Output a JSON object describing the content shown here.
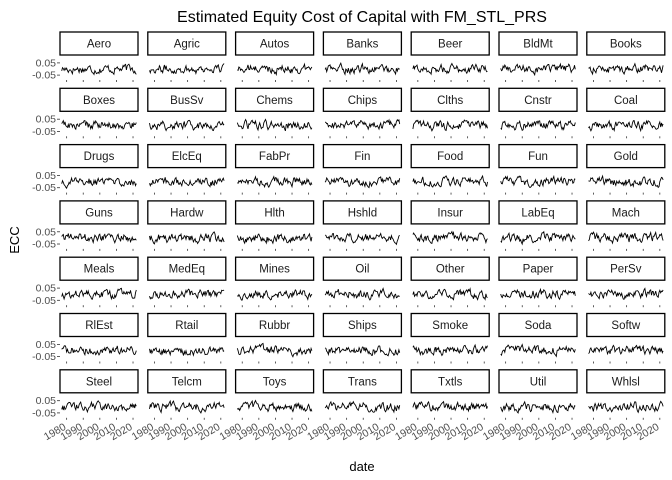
{
  "chart_data": {
    "type": "line",
    "title": "Estimated Equity Cost of Capital with FM_STL_PRS",
    "xlabel": "date",
    "ylabel": "ECC",
    "x_ticks": [
      "1980",
      "1990",
      "2000",
      "2010",
      "2020"
    ],
    "y_ticks": [
      "0.05",
      "-0.05"
    ],
    "xlim": [
      1976,
      2023
    ],
    "ylim": [
      -0.09,
      0.09
    ],
    "grid": false,
    "layout": "facet-grid 7x7",
    "series": [
      {
        "name": "Aero"
      },
      {
        "name": "Agric"
      },
      {
        "name": "Autos"
      },
      {
        "name": "Banks"
      },
      {
        "name": "Beer"
      },
      {
        "name": "BldMt"
      },
      {
        "name": "Books"
      },
      {
        "name": "Boxes"
      },
      {
        "name": "BusSv"
      },
      {
        "name": "Chems"
      },
      {
        "name": "Chips"
      },
      {
        "name": "Clths"
      },
      {
        "name": "Cnstr"
      },
      {
        "name": "Coal"
      },
      {
        "name": "Drugs"
      },
      {
        "name": "ElcEq"
      },
      {
        "name": "FabPr"
      },
      {
        "name": "Fin"
      },
      {
        "name": "Food"
      },
      {
        "name": "Fun"
      },
      {
        "name": "Gold"
      },
      {
        "name": "Guns"
      },
      {
        "name": "Hardw"
      },
      {
        "name": "Hlth"
      },
      {
        "name": "Hshld"
      },
      {
        "name": "Insur"
      },
      {
        "name": "LabEq"
      },
      {
        "name": "Mach"
      },
      {
        "name": "Meals"
      },
      {
        "name": "MedEq"
      },
      {
        "name": "Mines"
      },
      {
        "name": "Oil"
      },
      {
        "name": "Other"
      },
      {
        "name": "Paper"
      },
      {
        "name": "PerSv"
      },
      {
        "name": "RlEst"
      },
      {
        "name": "Rtail"
      },
      {
        "name": "Rubbr"
      },
      {
        "name": "Ships"
      },
      {
        "name": "Smoke"
      },
      {
        "name": "Soda"
      },
      {
        "name": "Softw"
      },
      {
        "name": "Steel"
      },
      {
        "name": "Telcm"
      },
      {
        "name": "Toys"
      },
      {
        "name": "Trans"
      },
      {
        "name": "Txtls"
      },
      {
        "name": "Util"
      },
      {
        "name": "Whlsl"
      }
    ]
  }
}
